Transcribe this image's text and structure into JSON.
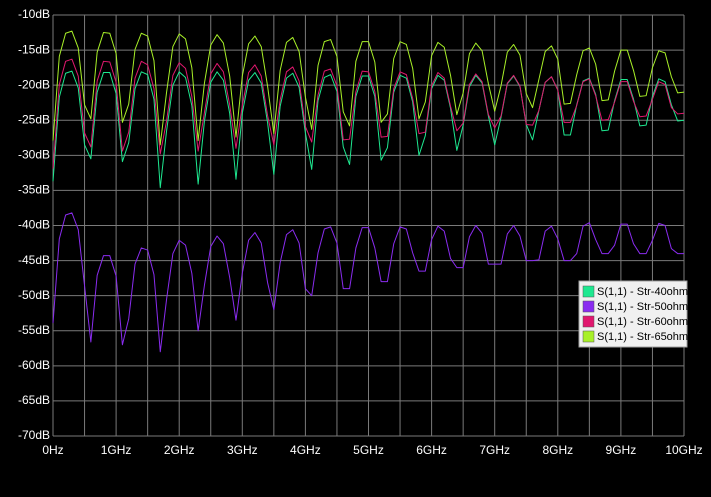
{
  "chart_data": {
    "type": "line",
    "x": [
      0,
      0.1,
      0.2,
      0.3,
      0.4,
      0.5,
      0.6,
      0.7,
      0.8,
      0.9,
      1,
      1.1,
      1.2,
      1.3,
      1.4,
      1.5,
      1.6,
      1.7,
      1.8,
      1.9,
      2,
      2.1,
      2.2,
      2.3,
      2.4,
      2.5,
      2.6,
      2.7,
      2.8,
      2.9,
      3,
      3.1,
      3.2,
      3.3,
      3.4,
      3.5,
      3.6,
      3.7,
      3.8,
      3.9,
      4,
      4.1,
      4.2,
      4.3,
      4.4,
      4.5,
      4.6,
      4.7,
      4.8,
      4.9,
      5,
      5.1,
      5.2,
      5.3,
      5.4,
      5.5,
      5.6,
      5.7,
      5.8,
      5.9,
      6,
      6.1,
      6.2,
      6.3,
      6.4,
      6.5,
      6.6,
      6.7,
      6.8,
      6.9,
      7,
      7.1,
      7.2,
      7.3,
      7.4,
      7.5,
      7.6,
      7.7,
      7.8,
      7.9,
      8,
      8.1,
      8.2,
      8.3,
      8.4,
      8.5,
      8.6,
      8.7,
      8.8,
      8.9,
      9,
      9.1,
      9.2,
      9.3,
      9.4,
      9.5,
      9.6,
      9.7,
      9.8,
      9.9,
      10
    ],
    "series": [
      {
        "name": "S(1,1) - Str-40ohm.",
        "color": "#1ee890",
        "values": [
          -33.7,
          -21.7,
          -18.3,
          -18.0,
          -20.4,
          -28.5,
          -30.5,
          -21.0,
          -18.2,
          -18.2,
          -21.2,
          -30.9,
          -28.2,
          -20.5,
          -18.1,
          -18.5,
          -22.0,
          -34.6,
          -26.5,
          -20.0,
          -18.1,
          -18.9,
          -22.9,
          -34.1,
          -25.1,
          -19.6,
          -18.1,
          -19.3,
          -24.0,
          -33.4,
          -24.0,
          -19.3,
          -18.2,
          -19.7,
          -25.3,
          -32.7,
          -23.0,
          -19.0,
          -18.3,
          -20.3,
          -26.8,
          -32.0,
          -22.2,
          -18.9,
          -18.5,
          -20.9,
          -28.8,
          -31.3,
          -21.6,
          -18.7,
          -18.7,
          -21.6,
          -30.7,
          -28.9,
          -21.0,
          -18.6,
          -19.0,
          -22.4,
          -30.0,
          -27.2,
          -20.5,
          -18.6,
          -19.3,
          -23.3,
          -29.3,
          -25.7,
          -20.2,
          -18.6,
          -19.7,
          -24.4,
          -28.5,
          -24.6,
          -19.8,
          -18.7,
          -20.2,
          -25.6,
          -27.8,
          -23.6,
          -19.6,
          -18.8,
          -20.7,
          -27.1,
          -27.1,
          -22.8,
          -19.4,
          -19.0,
          -21.3,
          -26.5,
          -26.4,
          -22.2,
          -19.2,
          -19.2,
          -22.0,
          -25.8,
          -25.7,
          -21.6,
          -19.1,
          -19.5,
          -22.8,
          -25.1,
          -25.0
        ]
      },
      {
        "name": "S(1,1) - Str-50ohm.",
        "color": "#8a2cf0",
        "values": [
          -53.9,
          -41.9,
          -38.5,
          -38.2,
          -40.6,
          -48.6,
          -56.6,
          -47.1,
          -44.3,
          -44.3,
          -47.2,
          -57.0,
          -53.3,
          -45.5,
          -43.2,
          -43.5,
          -47.0,
          -58.0,
          -50.5,
          -44.0,
          -42.1,
          -42.8,
          -46.8,
          -55.0,
          -48.5,
          -43.0,
          -41.5,
          -42.6,
          -47.4,
          -53.5,
          -46.8,
          -42.1,
          -41.0,
          -42.5,
          -48.1,
          -52.0,
          -45.3,
          -41.3,
          -40.6,
          -42.5,
          -49.0,
          -50.0,
          -43.9,
          -40.5,
          -40.2,
          -42.5,
          -49.0,
          -49.0,
          -43.2,
          -40.3,
          -40.3,
          -43.2,
          -48.0,
          -48.0,
          -42.6,
          -40.2,
          -40.5,
          -43.9,
          -46.5,
          -46.5,
          -42.0,
          -40.1,
          -40.8,
          -44.7,
          -46.0,
          -46.0,
          -41.6,
          -40.0,
          -41.1,
          -45.5,
          -45.5,
          -45.5,
          -41.2,
          -40.0,
          -41.5,
          -45.0,
          -45.0,
          -44.9,
          -40.8,
          -40.1,
          -41.9,
          -45.0,
          -45.0,
          -44.0,
          -40.1,
          -39.6,
          -42.0,
          -44.0,
          -44.0,
          -42.8,
          -39.8,
          -39.8,
          -42.6,
          -44.0,
          -44.0,
          -42.1,
          -39.7,
          -40.0,
          -43.3,
          -44.0,
          -44.0
        ]
      },
      {
        "name": "S(1,1) - Str-60ohm.",
        "color": "#e0186e",
        "values": [
          -31.9,
          -19.9,
          -16.6,
          -16.3,
          -18.7,
          -26.8,
          -28.8,
          -19.4,
          -16.6,
          -16.7,
          -19.6,
          -29.4,
          -26.7,
          -19.0,
          -16.6,
          -17.1,
          -20.5,
          -29.8,
          -25.1,
          -18.6,
          -16.8,
          -17.6,
          -21.6,
          -29.4,
          -23.9,
          -18.4,
          -16.9,
          -18.1,
          -22.8,
          -29.0,
          -22.9,
          -18.2,
          -17.1,
          -18.7,
          -24.3,
          -28.5,
          -22.1,
          -18.1,
          -17.4,
          -19.4,
          -25.9,
          -28.1,
          -21.4,
          -18.0,
          -17.7,
          -20.1,
          -27.8,
          -27.7,
          -20.9,
          -18.0,
          -18.1,
          -20.9,
          -27.4,
          -27.3,
          -20.5,
          -18.1,
          -18.5,
          -21.9,
          -26.9,
          -26.7,
          -20.1,
          -18.2,
          -19.0,
          -23.0,
          -26.5,
          -25.4,
          -19.9,
          -18.4,
          -19.5,
          -24.2,
          -26.1,
          -24.4,
          -19.7,
          -18.6,
          -20.1,
          -25.6,
          -25.7,
          -23.6,
          -19.6,
          -18.8,
          -20.7,
          -25.3,
          -25.3,
          -22.9,
          -19.5,
          -19.1,
          -21.5,
          -25.0,
          -24.9,
          -22.4,
          -19.5,
          -19.5,
          -22.3,
          -24.5,
          -24.4,
          -22.0,
          -19.5,
          -19.9,
          -23.2,
          -24.1,
          -24.0
        ]
      },
      {
        "name": "S(1,1) - Str-65ohm.",
        "color": "#a8f028",
        "values": [
          -27.9,
          -15.9,
          -12.6,
          -12.3,
          -14.7,
          -22.8,
          -24.8,
          -15.3,
          -12.5,
          -12.6,
          -15.5,
          -25.3,
          -22.7,
          -14.9,
          -12.6,
          -13.0,
          -16.5,
          -28.5,
          -21.0,
          -14.5,
          -12.7,
          -13.4,
          -17.5,
          -27.9,
          -19.7,
          -14.3,
          -12.8,
          -14.0,
          -18.7,
          -27.4,
          -18.7,
          -14.1,
          -13.0,
          -14.5,
          -20.1,
          -26.9,
          -17.9,
          -13.9,
          -13.2,
          -15.2,
          -21.7,
          -26.3,
          -17.2,
          -13.8,
          -13.5,
          -15.9,
          -23.8,
          -25.8,
          -16.6,
          -13.8,
          -13.8,
          -16.7,
          -25.3,
          -24.1,
          -16.2,
          -13.8,
          -14.2,
          -17.6,
          -24.8,
          -22.4,
          -15.8,
          -13.9,
          -14.6,
          -18.6,
          -24.2,
          -21.1,
          -15.5,
          -14.0,
          -15.1,
          -19.8,
          -23.7,
          -20.1,
          -15.3,
          -14.2,
          -15.7,
          -21.2,
          -23.2,
          -19.2,
          -15.2,
          -14.4,
          -16.3,
          -22.7,
          -22.6,
          -18.5,
          -15.1,
          -14.7,
          -17.0,
          -22.2,
          -22.1,
          -18.0,
          -15.0,
          -15.0,
          -17.9,
          -21.6,
          -21.5,
          -17.5,
          -15.1,
          -15.4,
          -18.8,
          -21.1,
          -21.0
        ]
      }
    ],
    "xlim": [
      0,
      10
    ],
    "xticks": [
      {
        "value": 0,
        "label": "0Hz"
      },
      {
        "value": 1,
        "label": "1GHz"
      },
      {
        "value": 2,
        "label": "2GHz"
      },
      {
        "value": 3,
        "label": "3GHz"
      },
      {
        "value": 4,
        "label": "4GHz"
      },
      {
        "value": 5,
        "label": "5GHz"
      },
      {
        "value": 6,
        "label": "6GHz"
      },
      {
        "value": 7,
        "label": "7GHz"
      },
      {
        "value": 8,
        "label": "8GHz"
      },
      {
        "value": 9,
        "label": "9GHz"
      },
      {
        "value": 10,
        "label": "10GHz"
      }
    ],
    "xgrid_minor": [
      0.5,
      1.5,
      2.5,
      3.5,
      4.5,
      5.5,
      6.5,
      7.5,
      8.5,
      9.5
    ],
    "ylim": [
      -70,
      -10
    ],
    "yticks": [
      {
        "value": -10,
        "label": "-10dB"
      },
      {
        "value": -15,
        "label": "-15dB"
      },
      {
        "value": -20,
        "label": "-20dB"
      },
      {
        "value": -25,
        "label": "-25dB"
      },
      {
        "value": -30,
        "label": "-30dB"
      },
      {
        "value": -35,
        "label": "-35dB"
      },
      {
        "value": -40,
        "label": "-40dB"
      },
      {
        "value": -45,
        "label": "-45dB"
      },
      {
        "value": -50,
        "label": "-50dB"
      },
      {
        "value": -55,
        "label": "-55dB"
      },
      {
        "value": -60,
        "label": "-60dB"
      },
      {
        "value": -65,
        "label": "-65dB"
      },
      {
        "value": -70,
        "label": "-70dB"
      }
    ],
    "grid": true,
    "legend": "right"
  }
}
